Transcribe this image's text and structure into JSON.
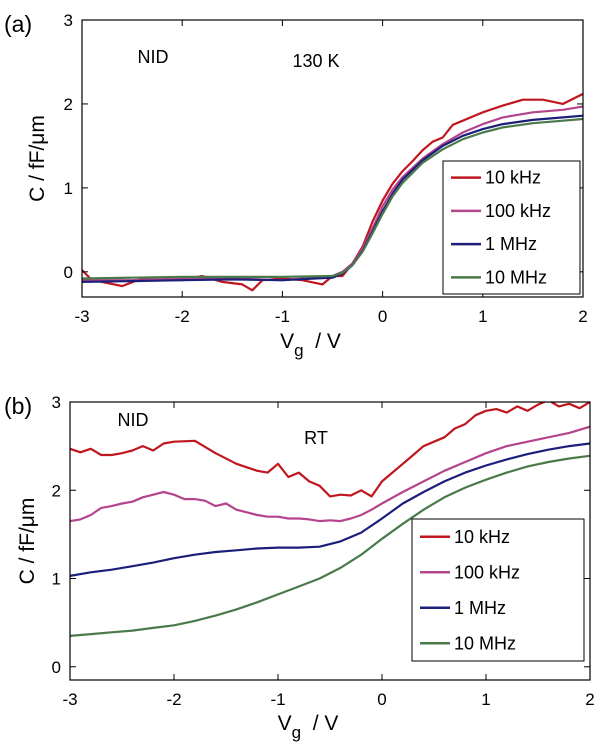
{
  "chart_data": [
    {
      "type": "line",
      "panel_label": "(a)",
      "annotations": [
        "NID",
        "130 K"
      ],
      "xlabel_main": "V",
      "xlabel_sub": "g",
      "xlabel_unit": "/ V",
      "ylabel": "C / fF/μm",
      "xlim": [
        -3,
        2
      ],
      "ylim": [
        -0.3,
        3
      ],
      "xticks": [
        "-3",
        "-2",
        "-1",
        "0",
        "1",
        "2"
      ],
      "yticks": [
        "0",
        "1",
        "2",
        "3"
      ],
      "grid": false,
      "legend_position": "bottom-right",
      "series": [
        {
          "name": "10 kHz",
          "color": "#c0161f",
          "x": [
            -3,
            -2.9,
            -2.8,
            -2.6,
            -2.4,
            -2.2,
            -2.0,
            -1.8,
            -1.6,
            -1.4,
            -1.3,
            -1.2,
            -1.0,
            -0.8,
            -0.6,
            -0.5,
            -0.4,
            -0.3,
            -0.2,
            -0.1,
            0,
            0.1,
            0.2,
            0.3,
            0.4,
            0.5,
            0.6,
            0.7,
            0.8,
            0.9,
            1.0,
            1.2,
            1.4,
            1.6,
            1.8,
            2.0
          ],
          "y": [
            0.02,
            -0.1,
            -0.12,
            -0.17,
            -0.08,
            -0.1,
            -0.1,
            -0.05,
            -0.12,
            -0.15,
            -0.22,
            -0.1,
            -0.08,
            -0.1,
            -0.15,
            -0.05,
            -0.05,
            0.1,
            0.3,
            0.6,
            0.85,
            1.05,
            1.2,
            1.32,
            1.45,
            1.55,
            1.6,
            1.75,
            1.8,
            1.85,
            1.9,
            1.98,
            2.05,
            2.05,
            2.0,
            2.12
          ]
        },
        {
          "name": "100 kHz",
          "color": "#b4448c",
          "x": [
            -3,
            -2.5,
            -2.0,
            -1.5,
            -1.0,
            -0.5,
            -0.4,
            -0.3,
            -0.2,
            -0.1,
            0,
            0.1,
            0.2,
            0.4,
            0.6,
            0.8,
            1.0,
            1.2,
            1.5,
            1.8,
            2.0
          ],
          "y": [
            -0.1,
            -0.1,
            -0.08,
            -0.08,
            -0.1,
            -0.05,
            0.0,
            0.1,
            0.28,
            0.52,
            0.78,
            0.98,
            1.13,
            1.35,
            1.52,
            1.66,
            1.76,
            1.84,
            1.9,
            1.93,
            1.97
          ]
        },
        {
          "name": "1 MHz",
          "color": "#1b1f7a",
          "x": [
            -3,
            -2.5,
            -2.0,
            -1.5,
            -1.0,
            -0.5,
            -0.4,
            -0.3,
            -0.2,
            -0.1,
            0,
            0.1,
            0.2,
            0.4,
            0.6,
            0.8,
            1.0,
            1.2,
            1.5,
            1.8,
            2.0
          ],
          "y": [
            -0.12,
            -0.11,
            -0.1,
            -0.09,
            -0.1,
            -0.07,
            -0.02,
            0.08,
            0.25,
            0.48,
            0.72,
            0.93,
            1.1,
            1.33,
            1.5,
            1.62,
            1.7,
            1.76,
            1.81,
            1.84,
            1.86
          ]
        },
        {
          "name": "10 MHz",
          "color": "#4a7a4a",
          "x": [
            -3,
            -2.5,
            -2.0,
            -1.5,
            -1.0,
            -0.5,
            -0.4,
            -0.3,
            -0.2,
            -0.1,
            0,
            0.1,
            0.2,
            0.4,
            0.6,
            0.8,
            1.0,
            1.2,
            1.5,
            1.8,
            2.0
          ],
          "y": [
            -0.08,
            -0.07,
            -0.06,
            -0.06,
            -0.06,
            -0.05,
            -0.01,
            0.08,
            0.24,
            0.46,
            0.69,
            0.9,
            1.06,
            1.3,
            1.46,
            1.58,
            1.66,
            1.72,
            1.77,
            1.8,
            1.82
          ]
        }
      ]
    },
    {
      "type": "line",
      "panel_label": "(b)",
      "annotations": [
        "NID",
        "RT"
      ],
      "xlabel_main": "V",
      "xlabel_sub": "g",
      "xlabel_unit": "/ V",
      "ylabel": "C / fF/μm",
      "xlim": [
        -3,
        2
      ],
      "ylim": [
        -0.15,
        3
      ],
      "xticks": [
        "-3",
        "-2",
        "-1",
        "0",
        "1",
        "2"
      ],
      "yticks": [
        "0",
        "1",
        "2",
        "3"
      ],
      "grid": false,
      "legend_position": "bottom-right",
      "series": [
        {
          "name": "10 kHz",
          "color": "#c0161f",
          "x": [
            -3,
            -2.9,
            -2.8,
            -2.7,
            -2.6,
            -2.5,
            -2.4,
            -2.3,
            -2.2,
            -2.1,
            -2.0,
            -1.8,
            -1.6,
            -1.4,
            -1.2,
            -1.1,
            -1.0,
            -0.9,
            -0.8,
            -0.7,
            -0.6,
            -0.5,
            -0.4,
            -0.3,
            -0.2,
            -0.1,
            0,
            0.1,
            0.2,
            0.3,
            0.4,
            0.5,
            0.6,
            0.7,
            0.8,
            0.9,
            1.0,
            1.1,
            1.2,
            1.3,
            1.4,
            1.5,
            1.6,
            1.7,
            1.8,
            1.9,
            2.0
          ],
          "y": [
            2.47,
            2.43,
            2.47,
            2.4,
            2.4,
            2.42,
            2.45,
            2.5,
            2.45,
            2.53,
            2.55,
            2.56,
            2.42,
            2.3,
            2.22,
            2.2,
            2.3,
            2.15,
            2.2,
            2.1,
            2.05,
            1.93,
            1.95,
            1.94,
            2.0,
            1.93,
            2.1,
            2.2,
            2.3,
            2.4,
            2.5,
            2.55,
            2.6,
            2.7,
            2.75,
            2.85,
            2.9,
            2.92,
            2.88,
            2.95,
            2.9,
            2.97,
            3.02,
            2.95,
            2.98,
            2.93,
            3.0
          ]
        },
        {
          "name": "100 kHz",
          "color": "#b4448c",
          "x": [
            -3,
            -2.9,
            -2.8,
            -2.7,
            -2.6,
            -2.5,
            -2.4,
            -2.3,
            -2.2,
            -2.1,
            -2.0,
            -1.9,
            -1.8,
            -1.7,
            -1.6,
            -1.5,
            -1.4,
            -1.3,
            -1.2,
            -1.1,
            -1.0,
            -0.9,
            -0.8,
            -0.7,
            -0.6,
            -0.5,
            -0.4,
            -0.3,
            -0.2,
            -0.1,
            0,
            0.2,
            0.4,
            0.6,
            0.8,
            1.0,
            1.2,
            1.4,
            1.6,
            1.8,
            2.0
          ],
          "y": [
            1.65,
            1.67,
            1.72,
            1.8,
            1.82,
            1.85,
            1.87,
            1.92,
            1.95,
            1.98,
            1.95,
            1.9,
            1.9,
            1.88,
            1.82,
            1.85,
            1.78,
            1.75,
            1.72,
            1.7,
            1.7,
            1.68,
            1.68,
            1.67,
            1.65,
            1.66,
            1.65,
            1.68,
            1.72,
            1.78,
            1.85,
            1.98,
            2.1,
            2.22,
            2.32,
            2.42,
            2.5,
            2.55,
            2.6,
            2.65,
            2.72
          ]
        },
        {
          "name": "1 MHz",
          "color": "#1b1f7a",
          "x": [
            -3,
            -2.8,
            -2.6,
            -2.4,
            -2.2,
            -2.0,
            -1.8,
            -1.6,
            -1.4,
            -1.2,
            -1.0,
            -0.8,
            -0.6,
            -0.4,
            -0.2,
            0,
            0.2,
            0.4,
            0.6,
            0.8,
            1.0,
            1.2,
            1.4,
            1.6,
            1.8,
            2.0
          ],
          "y": [
            1.03,
            1.07,
            1.1,
            1.14,
            1.18,
            1.23,
            1.27,
            1.3,
            1.32,
            1.34,
            1.35,
            1.35,
            1.36,
            1.42,
            1.52,
            1.68,
            1.85,
            1.98,
            2.1,
            2.2,
            2.28,
            2.35,
            2.41,
            2.46,
            2.5,
            2.53
          ]
        },
        {
          "name": "10 MHz",
          "color": "#4a7a4a",
          "x": [
            -3,
            -2.8,
            -2.6,
            -2.4,
            -2.2,
            -2.0,
            -1.8,
            -1.6,
            -1.4,
            -1.2,
            -1.0,
            -0.8,
            -0.6,
            -0.4,
            -0.2,
            0,
            0.2,
            0.4,
            0.6,
            0.8,
            1.0,
            1.2,
            1.4,
            1.6,
            1.8,
            2.0
          ],
          "y": [
            0.35,
            0.37,
            0.39,
            0.41,
            0.44,
            0.47,
            0.52,
            0.58,
            0.65,
            0.73,
            0.82,
            0.91,
            1.0,
            1.12,
            1.27,
            1.45,
            1.62,
            1.78,
            1.92,
            2.03,
            2.12,
            2.2,
            2.27,
            2.32,
            2.36,
            2.39
          ]
        }
      ]
    }
  ]
}
